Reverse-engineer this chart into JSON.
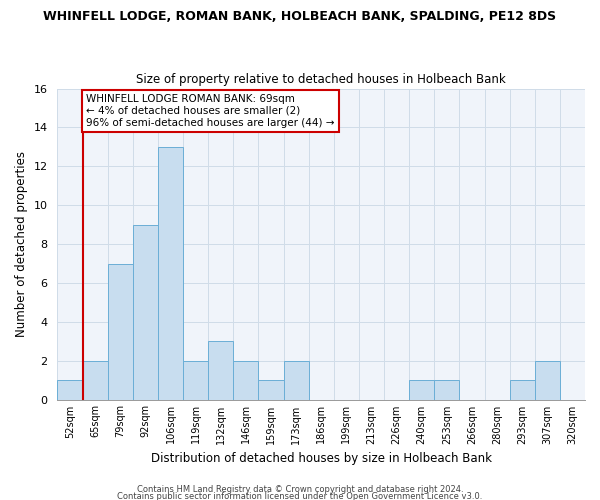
{
  "title": "WHINFELL LODGE, ROMAN BANK, HOLBEACH BANK, SPALDING, PE12 8DS",
  "subtitle": "Size of property relative to detached houses in Holbeach Bank",
  "xlabel": "Distribution of detached houses by size in Holbeach Bank",
  "ylabel": "Number of detached properties",
  "bin_labels": [
    "52sqm",
    "65sqm",
    "79sqm",
    "92sqm",
    "106sqm",
    "119sqm",
    "132sqm",
    "146sqm",
    "159sqm",
    "173sqm",
    "186sqm",
    "199sqm",
    "213sqm",
    "226sqm",
    "240sqm",
    "253sqm",
    "266sqm",
    "280sqm",
    "293sqm",
    "307sqm",
    "320sqm"
  ],
  "bar_values": [
    1,
    2,
    7,
    9,
    13,
    2,
    3,
    2,
    1,
    2,
    0,
    0,
    0,
    0,
    1,
    1,
    0,
    0,
    1,
    2,
    0
  ],
  "bar_color": "#c8ddef",
  "bar_edge_color": "#6baed6",
  "ylim": [
    0,
    16
  ],
  "yticks": [
    0,
    2,
    4,
    6,
    8,
    10,
    12,
    14,
    16
  ],
  "annotation_title": "WHINFELL LODGE ROMAN BANK: 69sqm",
  "annotation_line1": "← 4% of detached houses are smaller (2)",
  "annotation_line2": "96% of semi-detached houses are larger (44) →",
  "annotation_box_color": "#ffffff",
  "annotation_box_edge": "#cc0000",
  "property_line_color": "#cc0000",
  "grid_color": "#d0dce8",
  "footnote1": "Contains HM Land Registry data © Crown copyright and database right 2024.",
  "footnote2": "Contains public sector information licensed under the Open Government Licence v3.0."
}
